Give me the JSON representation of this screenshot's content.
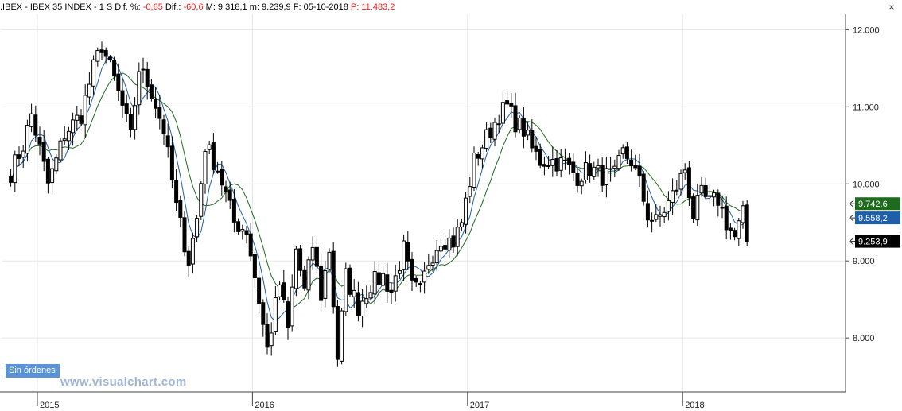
{
  "header": {
    "symbol": ".IBEX",
    "sep1": " - ",
    "name": "IBEX 35 INDEX",
    "sep2": " - ",
    "period": "1 S",
    "dif_pct_label": " Dif. %: ",
    "dif_pct_value": "-0,65",
    "dif_label": " Dif.: ",
    "dif_value": "-60,6",
    "max_label": " M: 9.318,1",
    "min_label": "  m: 9.239,9",
    "date_label": "  F: 05-10-2018",
    "p_label": "  P: 11.483,2",
    "close_glyph": "×"
  },
  "order_button": {
    "label": "Sin órdenes"
  },
  "watermark": "www.visualchart.com",
  "colors": {
    "bull_body": "#ffffff",
    "bear_body": "#000000",
    "ma_short": "#1f5fa8",
    "ma_long": "#1e6b1e",
    "tag_long_bg": "#1e6b1e",
    "tag_short_bg": "#1f5fa8",
    "tag_last_bg": "#000000",
    "dif_negative": "#e8231e"
  },
  "chart_data": {
    "type": "candlestick",
    "title": "",
    "xlabel": "",
    "ylabel": "",
    "ylim": [
      7300,
      12200
    ],
    "y_ticks": [
      {
        "value": 8000,
        "label": "8.000"
      },
      {
        "value": 9000,
        "label": "9.000"
      },
      {
        "value": 10000,
        "label": "10.000"
      },
      {
        "value": 11000,
        "label": "11.000"
      },
      {
        "value": 12000,
        "label": "12.000"
      }
    ],
    "x_ticks": [
      {
        "label": "2015",
        "week_index": 0
      },
      {
        "label": "2016",
        "week_index": 52
      },
      {
        "label": "2017",
        "week_index": 104
      },
      {
        "label": "2018",
        "week_index": 156
      }
    ],
    "last_values": [
      {
        "name": "ma_long",
        "value": 9742.6,
        "label": "9.742,6"
      },
      {
        "name": "ma_short",
        "value": 9558.2,
        "label": "9.558,2"
      },
      {
        "name": "close",
        "value": 9253.9,
        "label": "9.253,9"
      }
    ],
    "anchors": [
      [
        -7,
        10150
      ],
      [
        -4,
        10500
      ],
      [
        -2,
        10900
      ],
      [
        2,
        10000
      ],
      [
        4,
        10300
      ],
      [
        6,
        10650
      ],
      [
        10,
        10900
      ],
      [
        13,
        11500
      ],
      [
        15,
        11800
      ],
      [
        18,
        11350
      ],
      [
        20,
        11000
      ],
      [
        22,
        10600
      ],
      [
        24,
        11500
      ],
      [
        27,
        11200
      ],
      [
        30,
        10700
      ],
      [
        33,
        9700
      ],
      [
        36,
        9000
      ],
      [
        38,
        9550
      ],
      [
        40,
        10500
      ],
      [
        43,
        10200
      ],
      [
        47,
        9500
      ],
      [
        50,
        9400
      ],
      [
        52,
        8800
      ],
      [
        55,
        7850
      ],
      [
        58,
        8700
      ],
      [
        60,
        8100
      ],
      [
        62,
        9150
      ],
      [
        64,
        8600
      ],
      [
        66,
        9200
      ],
      [
        68,
        8550
      ],
      [
        70,
        9150
      ],
      [
        72,
        7750
      ],
      [
        74,
        8800
      ],
      [
        77,
        8400
      ],
      [
        80,
        8700
      ],
      [
        83,
        8800
      ],
      [
        85,
        8600
      ],
      [
        88,
        9150
      ],
      [
        90,
        8650
      ],
      [
        92,
        8600
      ],
      [
        94,
        9000
      ],
      [
        97,
        9300
      ],
      [
        100,
        9250
      ],
      [
        102,
        9500
      ],
      [
        105,
        10300
      ],
      [
        107,
        10500
      ],
      [
        109,
        10700
      ],
      [
        111,
        10900
      ],
      [
        113,
        11000
      ],
      [
        115,
        10800
      ],
      [
        117,
        10700
      ],
      [
        119,
        10450
      ],
      [
        121,
        10300
      ],
      [
        124,
        10300
      ],
      [
        127,
        10250
      ],
      [
        130,
        10100
      ],
      [
        133,
        10200
      ],
      [
        136,
        10100
      ],
      [
        139,
        10100
      ],
      [
        141,
        10400
      ],
      [
        143,
        10300
      ],
      [
        145,
        10000
      ],
      [
        147,
        9600
      ],
      [
        149,
        9500
      ],
      [
        152,
        9750
      ],
      [
        154,
        9950
      ],
      [
        156,
        10200
      ],
      [
        158,
        9600
      ],
      [
        160,
        9850
      ],
      [
        162,
        9750
      ],
      [
        164,
        9800
      ],
      [
        166,
        9500
      ],
      [
        168,
        9300
      ],
      [
        170,
        9600
      ],
      [
        171,
        9253.9
      ]
    ]
  }
}
